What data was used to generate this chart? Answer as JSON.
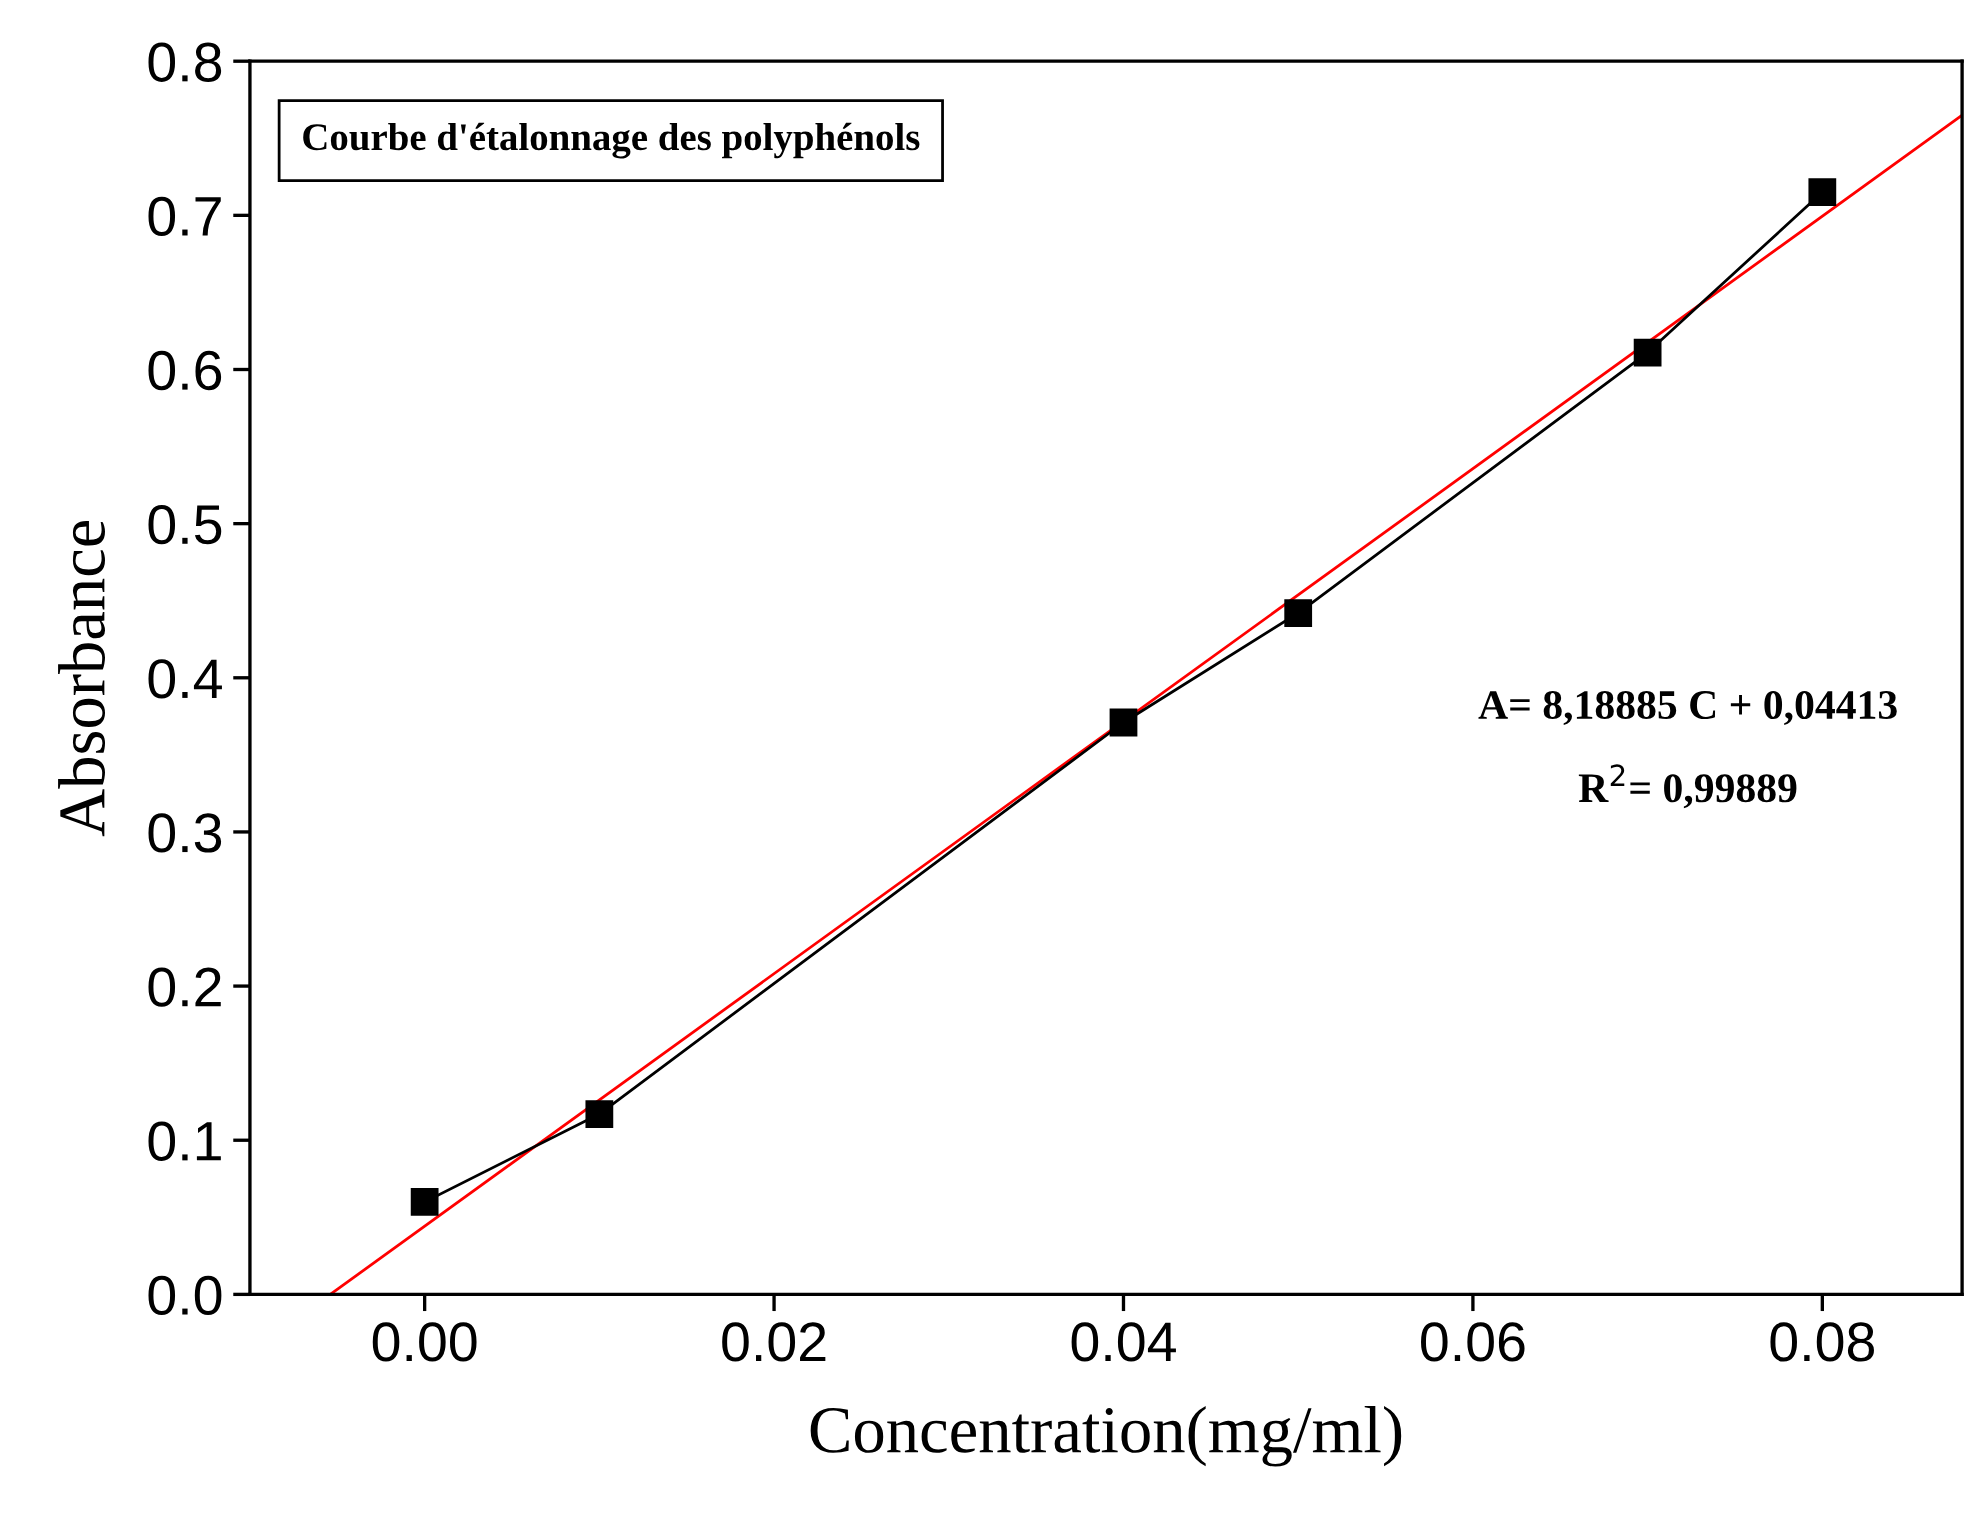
{
  "chart_data": {
    "type": "line",
    "xlabel": "Concentration(mg/ml)",
    "ylabel": "Absorbance",
    "x": [
      0,
      0.01,
      0.04,
      0.05,
      0.07,
      0.08
    ],
    "series": [
      {
        "color": "#000000",
        "values": [
          0.06,
          0.117,
          0.371,
          0.442,
          0.611,
          0.715
        ],
        "marker": "square"
      },
      {
        "type": "line",
        "color": "#ff0000",
        "x": [
          -0.0054,
          0.088
        ],
        "values": [
          0,
          0.765
        ],
        "marker": "none"
      }
    ],
    "xlim": [
      -0.01,
      0.088
    ],
    "xticks": [
      {
        "value": 0,
        "label": "0.00"
      },
      0.02,
      0.04,
      0.06,
      0.08
    ],
    "ylim": [
      0,
      0.8
    ],
    "yticks": [
      {
        "value": 0,
        "label": "0.0"
      },
      0.1,
      0.2,
      0.3,
      0.4,
      0.5,
      0.6,
      0.7,
      0.8
    ],
    "grid": false,
    "line_style": "solid",
    "annotations": [
      "Courbe d'étalonnage des polyphénols",
      "A= 8,18885 C + 0,04413",
      "R$^{2}$= 0,99889"
    ]
  }
}
